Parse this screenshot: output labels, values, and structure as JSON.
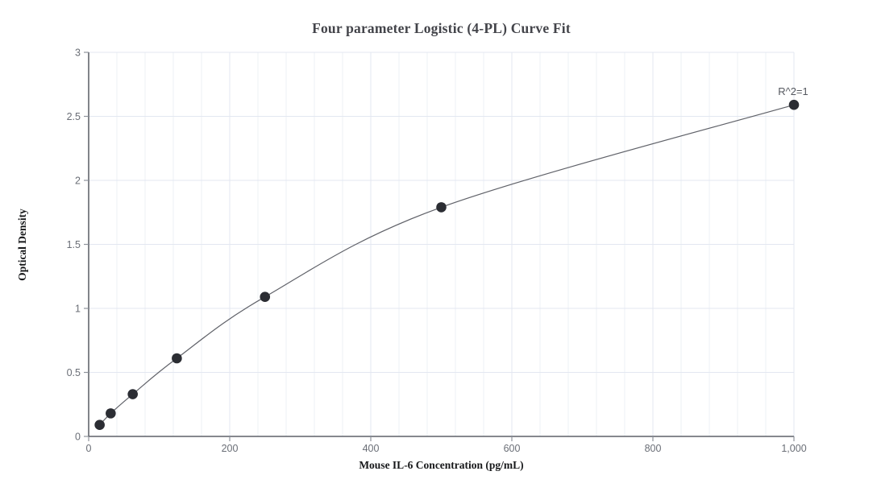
{
  "chart_data": {
    "type": "scatter",
    "title": "Four parameter Logistic (4-PL) Curve Fit",
    "xlabel": "Mouse IL-6 Concentration (pg/mL)",
    "ylabel": "Optical Density",
    "annotation": "R^2=1",
    "fit": "4PL",
    "legend": "none",
    "grid": true,
    "xlim": [
      0,
      1000
    ],
    "ylim": [
      0,
      3
    ],
    "x_ticks": [
      {
        "value": 0,
        "label": "0"
      },
      {
        "value": 200,
        "label": "200"
      },
      {
        "value": 400,
        "label": "400"
      },
      {
        "value": 600,
        "label": "600"
      },
      {
        "value": 800,
        "label": "800"
      },
      {
        "value": 1000,
        "label": "1,000"
      }
    ],
    "y_ticks": [
      {
        "value": 0,
        "label": "0"
      },
      {
        "value": 0.5,
        "label": "0.5"
      },
      {
        "value": 1,
        "label": "1"
      },
      {
        "value": 1.5,
        "label": "1.5"
      },
      {
        "value": 2,
        "label": "2"
      },
      {
        "value": 2.5,
        "label": "2.5"
      },
      {
        "value": 3,
        "label": "3"
      }
    ],
    "x_minor_grid_step": 40,
    "series": [
      {
        "name": "standard-points",
        "kind": "scatter",
        "x": [
          15.6,
          31.25,
          62.5,
          125,
          250,
          500,
          1000
        ],
        "y": [
          0.09,
          0.18,
          0.33,
          0.61,
          1.09,
          1.79,
          2.59
        ],
        "marker_color": "#2b2d33",
        "marker_radius": 6.3
      },
      {
        "name": "4pl-fit-curve",
        "kind": "line",
        "through": "standard-points",
        "color": "#606269",
        "width": 1.2
      }
    ],
    "colors": {
      "background": "#ffffff",
      "grid_minor": "#edf0f6",
      "grid_major": "#e3e7f1",
      "axis_line": "#3e424b",
      "tick_mark": "#8e939b",
      "tick_label": "#6a6e76",
      "title": "#43444a",
      "axis_title": "#17181a",
      "annotation": "#55585f"
    }
  }
}
